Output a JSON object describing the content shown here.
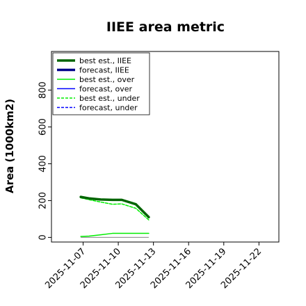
{
  "chart_data": {
    "type": "line",
    "title": "IIEE area metric",
    "xlabel": "",
    "ylabel": "Area (1000km2)",
    "x_ticks": [
      "2025-11-07",
      "2025-11-10",
      "2025-11-13",
      "2025-11-16",
      "2025-11-19",
      "2025-11-22"
    ],
    "x_ticks_day": [
      7,
      10,
      13,
      16,
      19,
      22
    ],
    "highlight_tick": "2025-11-13",
    "highlight_color": "#228b22",
    "xlim_day": [
      4.3,
      23.7
    ],
    "ylim": [
      -25,
      1010
    ],
    "y_ticks": [
      0,
      200,
      400,
      600,
      800
    ],
    "grid": false,
    "legend_position": "upper-left",
    "series": [
      {
        "name": "best est., IIEE",
        "color": "#006400",
        "style": "solid",
        "width": 3.5,
        "x_day": [
          6.8,
          7.5,
          8.5,
          9.5,
          10.3,
          11.5,
          12.6
        ],
        "values": [
          220,
          212,
          206,
          204,
          204,
          180,
          110
        ]
      },
      {
        "name": "forecast, IIEE",
        "color": "#00008b",
        "style": "solid",
        "width": 3.5,
        "x_day": [],
        "values": []
      },
      {
        "name": "best est., over",
        "color": "#00ee00",
        "style": "solid",
        "width": 1.5,
        "x_day": [
          6.8,
          7.5,
          8.5,
          9.5,
          10.3,
          11.5,
          12.6
        ],
        "values": [
          5,
          7,
          14,
          22,
          22,
          22,
          22
        ]
      },
      {
        "name": "forecast, over",
        "color": "#0000ff",
        "style": "solid",
        "width": 1.5,
        "x_day": [],
        "values": []
      },
      {
        "name": "best est., under",
        "color": "#00ee00",
        "style": "dashed",
        "width": 1.5,
        "x_day": [
          6.8,
          7.5,
          8.5,
          9.5,
          10.3,
          11.5,
          12.6
        ],
        "values": [
          215,
          205,
          192,
          180,
          182,
          158,
          95
        ]
      },
      {
        "name": "forecast, under",
        "color": "#0000ff",
        "style": "dashed",
        "width": 1.5,
        "x_day": [],
        "values": []
      }
    ],
    "extra_line": {
      "color": "#999999",
      "x_day": [
        6.8,
        12.6
      ],
      "values": [
        0,
        0
      ]
    }
  }
}
